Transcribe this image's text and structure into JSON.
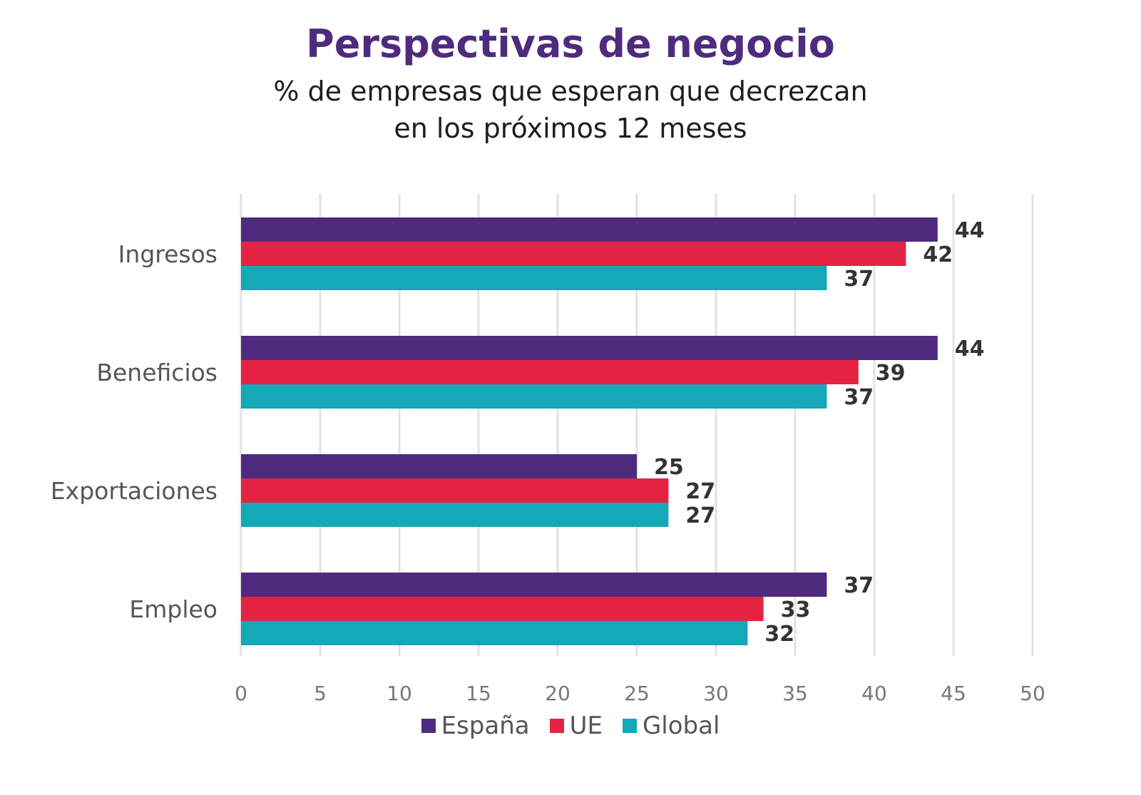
{
  "header": {
    "title": "Perspectivas de negocio",
    "subtitle_line1": "% de empresas que esperan que decrezcan",
    "subtitle_line2": "en los próximos 12 meses"
  },
  "chart_data": {
    "type": "bar",
    "orientation": "horizontal",
    "title": "Perspectivas de negocio",
    "subtitle": "% de empresas que esperan que decrezcan en los próximos 12 meses",
    "categories": [
      "Ingresos",
      "Beneficios",
      "Exportaciones",
      "Empleo"
    ],
    "series": [
      {
        "name": "España",
        "values": [
          44,
          44,
          25,
          37
        ],
        "color": "#4f2b7e"
      },
      {
        "name": "UE",
        "values": [
          42,
          39,
          27,
          33
        ],
        "color": "#e42342"
      },
      {
        "name": "Global",
        "values": [
          37,
          37,
          27,
          32
        ],
        "color": "#14a8b8"
      }
    ],
    "xlim": [
      0,
      50
    ],
    "xticks": [
      0,
      5,
      10,
      15,
      20,
      25,
      30,
      35,
      40,
      45,
      50
    ],
    "grid": true,
    "legend_position": "bottom-center",
    "data_labels": true
  }
}
